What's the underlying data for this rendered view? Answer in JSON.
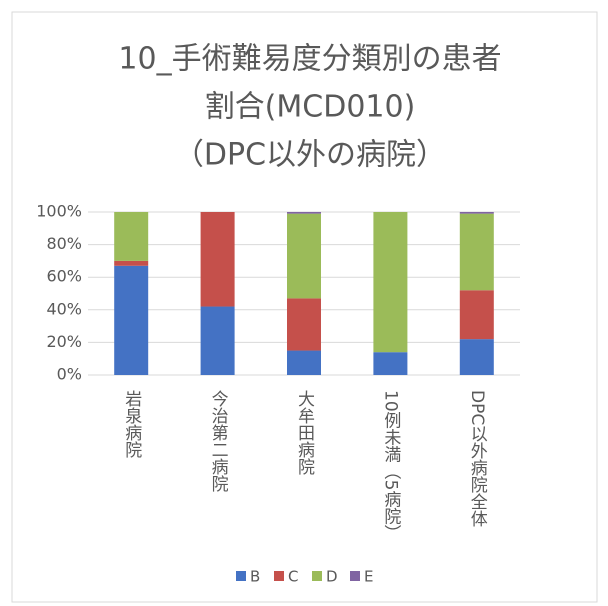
{
  "chart_data": {
    "type": "bar",
    "stacked": true,
    "title": [
      "10_手術難易度分類別の患者",
      "割合(MCD010)",
      "（DPC以外の病院）"
    ],
    "categories": [
      "岩泉病院",
      "今治第二病院",
      "大牟田病院",
      "10例未満（5病院）",
      "DPC以外病院全体"
    ],
    "series": [
      {
        "name": "B",
        "color": "#4472c4",
        "values": [
          67,
          42,
          15,
          14,
          22
        ]
      },
      {
        "name": "C",
        "color": "#c5504b",
        "values": [
          3,
          58,
          32,
          0,
          30
        ]
      },
      {
        "name": "D",
        "color": "#9bbb59",
        "values": [
          30,
          0,
          52,
          86,
          47
        ]
      },
      {
        "name": "E",
        "color": "#8064a2",
        "values": [
          0,
          0,
          1,
          0,
          1
        ]
      }
    ],
    "ylim": [
      0,
      100
    ],
    "yticks": [
      {
        "value": 0,
        "label": "0%"
      },
      {
        "value": 20,
        "label": "20%"
      },
      {
        "value": 40,
        "label": "40%"
      },
      {
        "value": 60,
        "label": "60%"
      },
      {
        "value": 80,
        "label": "80%"
      },
      {
        "value": 100,
        "label": "100%"
      }
    ],
    "grid": true,
    "legend": "bottom"
  }
}
